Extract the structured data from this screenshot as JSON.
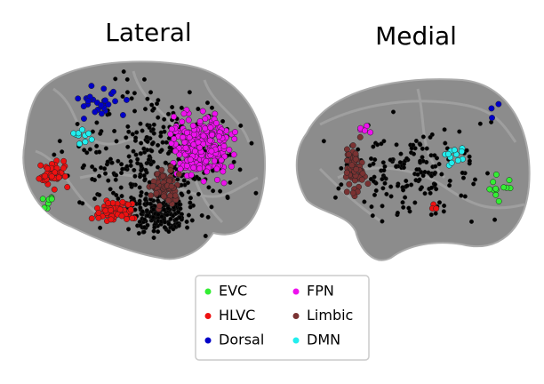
{
  "panels": [
    {
      "title": "Lateral"
    },
    {
      "title": "Medial"
    }
  ],
  "legend": {
    "items": [
      {
        "label": "EVC",
        "color": "#33ee33"
      },
      {
        "label": "HLVC",
        "color": "#ee1111"
      },
      {
        "label": "Dorsal",
        "color": "#0000c8"
      },
      {
        "label": "FPN",
        "color": "#ee11ee"
      },
      {
        "label": "Limbic",
        "color": "#7a3232"
      },
      {
        "label": "DMN",
        "color": "#22eeee"
      }
    ]
  }
}
